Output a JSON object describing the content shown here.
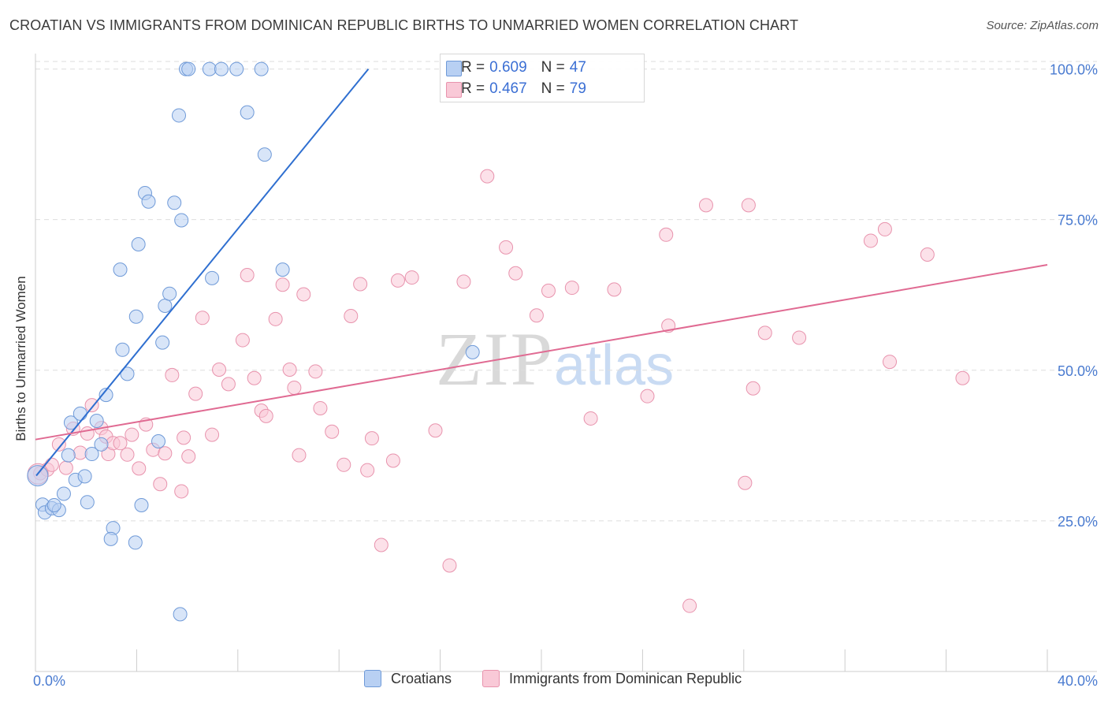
{
  "title": "CROATIAN VS IMMIGRANTS FROM DOMINICAN REPUBLIC BIRTHS TO UNMARRIED WOMEN CORRELATION CHART",
  "source": "Source: ZipAtlas.com",
  "watermark": {
    "zip": "ZIP",
    "atlas": "atlas"
  },
  "stats": {
    "rows": [
      {
        "r_label": "R =",
        "r_value": "0.609",
        "n_label": "N =",
        "n_value": "47"
      },
      {
        "r_label": "R =",
        "r_value": "0.467",
        "n_label": "N =",
        "n_value": "79"
      }
    ]
  },
  "legend": {
    "items": [
      "Croatians",
      "Immigrants from Dominican Republic"
    ]
  },
  "colors": {
    "croatians_fill": "#b8d0f3",
    "croatians_stroke": "#6f9ad8",
    "croatians_line": "#2f6fd0",
    "dominican_fill": "#f9c9d7",
    "dominican_stroke": "#e893ad",
    "dominican_line": "#e06a92",
    "tick_text": "#4a7bd0",
    "grid": "#dddddd"
  },
  "chart_data": {
    "type": "scatter",
    "title": "CROATIAN VS IMMIGRANTS FROM DOMINICAN REPUBLIC BIRTHS TO UNMARRIED WOMEN CORRELATION CHART",
    "xlabel": "",
    "ylabel": "Births to Unmarried Women",
    "xlim": [
      0,
      40
    ],
    "ylim": [
      0,
      102.3
    ],
    "x_tick_labels": [
      "0.0%",
      "40.0%"
    ],
    "y_ticks": [
      25,
      50,
      75,
      100
    ],
    "y_tick_labels": [
      "25.0%",
      "50.0%",
      "75.0%",
      "100.0%"
    ],
    "grid": true,
    "legend_position": "bottom-center",
    "series": [
      {
        "name": "Croatians",
        "trend": {
          "x": [
            0,
            13.16
          ],
          "y": [
            32.5,
            100
          ]
        },
        "points": [
          [
            0.09,
            32.5
          ],
          [
            0.28,
            27.7
          ],
          [
            0.37,
            26.4
          ],
          [
            0.65,
            27.1
          ],
          [
            0.93,
            26.8
          ],
          [
            0.74,
            27.6
          ],
          [
            1.12,
            29.5
          ],
          [
            1.3,
            35.9
          ],
          [
            1.4,
            41.3
          ],
          [
            1.58,
            31.8
          ],
          [
            1.77,
            42.8
          ],
          [
            1.95,
            32.4
          ],
          [
            2.05,
            28.1
          ],
          [
            2.23,
            36.1
          ],
          [
            2.42,
            41.6
          ],
          [
            2.6,
            37.7
          ],
          [
            2.79,
            45.9
          ],
          [
            3.07,
            23.8
          ],
          [
            2.98,
            22
          ],
          [
            3.35,
            66.7
          ],
          [
            3.44,
            53.4
          ],
          [
            3.63,
            49.4
          ],
          [
            3.95,
            21.4
          ],
          [
            3.98,
            58.9
          ],
          [
            4.07,
            70.9
          ],
          [
            4.19,
            27.6
          ],
          [
            4.33,
            79.4
          ],
          [
            4.47,
            78
          ],
          [
            4.86,
            38.2
          ],
          [
            5.02,
            54.6
          ],
          [
            5.12,
            60.7
          ],
          [
            5.3,
            62.7
          ],
          [
            5.49,
            77.8
          ],
          [
            5.67,
            92.3
          ],
          [
            5.72,
            9.5
          ],
          [
            5.77,
            74.9
          ],
          [
            5.95,
            100
          ],
          [
            6.05,
            100
          ],
          [
            6.98,
            65.3
          ],
          [
            6.88,
            100
          ],
          [
            7.35,
            100
          ],
          [
            7.95,
            100
          ],
          [
            8.37,
            92.8
          ],
          [
            8.93,
            100
          ],
          [
            9.06,
            85.8
          ],
          [
            9.77,
            66.7
          ],
          [
            17.28,
            53
          ]
        ]
      },
      {
        "name": "Immigrants from Dominican Republic",
        "trend": {
          "x": [
            0,
            40
          ],
          "y": [
            38.5,
            67.5
          ]
        },
        "points": [
          [
            0.19,
            32.9
          ],
          [
            0.47,
            33.5
          ],
          [
            0.65,
            34.3
          ],
          [
            0.93,
            37.7
          ],
          [
            1.21,
            33.8
          ],
          [
            1.49,
            40.3
          ],
          [
            1.77,
            36.3
          ],
          [
            2.05,
            39.5
          ],
          [
            2.23,
            44.2
          ],
          [
            2.6,
            40.4
          ],
          [
            2.79,
            39
          ],
          [
            2.88,
            36.1
          ],
          [
            3.07,
            37.9
          ],
          [
            3.35,
            37.9
          ],
          [
            3.63,
            36
          ],
          [
            3.81,
            39.3
          ],
          [
            4.09,
            33.7
          ],
          [
            4.37,
            41
          ],
          [
            4.65,
            36.8
          ],
          [
            4.93,
            31.1
          ],
          [
            5.12,
            36.2
          ],
          [
            5.4,
            49.2
          ],
          [
            5.86,
            38.8
          ],
          [
            5.77,
            29.9
          ],
          [
            6.05,
            35.7
          ],
          [
            6.33,
            46.1
          ],
          [
            6.6,
            58.7
          ],
          [
            6.98,
            39.3
          ],
          [
            7.26,
            50.1
          ],
          [
            7.63,
            47.7
          ],
          [
            8.19,
            55
          ],
          [
            8.37,
            65.8
          ],
          [
            8.65,
            48.7
          ],
          [
            8.93,
            43.3
          ],
          [
            9.12,
            42.4
          ],
          [
            9.49,
            58.5
          ],
          [
            9.77,
            64.2
          ],
          [
            10.05,
            50.1
          ],
          [
            10.23,
            47.1
          ],
          [
            10.42,
            35.9
          ],
          [
            10.6,
            62.6
          ],
          [
            11.07,
            49.8
          ],
          [
            11.26,
            43.7
          ],
          [
            11.72,
            39.8
          ],
          [
            12.19,
            34.3
          ],
          [
            12.47,
            59
          ],
          [
            12.84,
            64.3
          ],
          [
            13.12,
            33.4
          ],
          [
            13.3,
            38.7
          ],
          [
            13.67,
            21
          ],
          [
            14.14,
            35
          ],
          [
            14.33,
            64.9
          ],
          [
            14.88,
            65.4
          ],
          [
            15.81,
            40
          ],
          [
            16.37,
            17.6
          ],
          [
            16.93,
            64.7
          ],
          [
            17.86,
            82.2
          ],
          [
            18.6,
            70.4
          ],
          [
            18.98,
            66.1
          ],
          [
            19.81,
            59.1
          ],
          [
            20.28,
            63.2
          ],
          [
            21.21,
            63.7
          ],
          [
            21.95,
            42
          ],
          [
            22.88,
            63.4
          ],
          [
            24.19,
            45.7
          ],
          [
            24.93,
            72.5
          ],
          [
            25.02,
            57.4
          ],
          [
            25.86,
            10.9
          ],
          [
            26.51,
            77.4
          ],
          [
            28.05,
            31.3
          ],
          [
            28.19,
            77.4
          ],
          [
            28.37,
            47
          ],
          [
            28.84,
            56.2
          ],
          [
            30.19,
            55.4
          ],
          [
            33.02,
            71.5
          ],
          [
            33.58,
            73.4
          ],
          [
            33.77,
            51.4
          ],
          [
            35.26,
            69.2
          ],
          [
            36.65,
            48.7
          ]
        ]
      }
    ]
  }
}
